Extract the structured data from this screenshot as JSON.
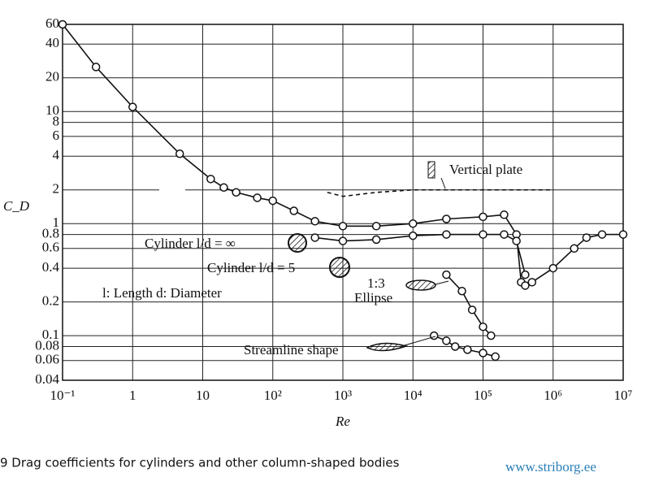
{
  "chart_data": {
    "type": "line",
    "xlabel": "Re",
    "ylabel": "C_D",
    "xlog": true,
    "ylog": true,
    "grid": true,
    "xlim": [
      0.1,
      10000000
    ],
    "ylim": [
      0.04,
      60
    ],
    "xticks": [
      {
        "value": 0.1,
        "label": "10⁻¹"
      },
      1,
      10,
      {
        "value": 100,
        "label": "10²"
      },
      {
        "value": 1000,
        "label": "10³"
      },
      {
        "value": 10000,
        "label": "10⁴"
      },
      {
        "value": 100000,
        "label": "10⁵"
      },
      {
        "value": 1000000,
        "label": "10⁶"
      },
      {
        "value": 10000000,
        "label": "10⁷"
      }
    ],
    "yticks": [
      60,
      40,
      20,
      10,
      8,
      6,
      4,
      2,
      1,
      0.8,
      0.6,
      0.4,
      0.2,
      0.1,
      0.08,
      0.06,
      0.04
    ],
    "series": [
      {
        "name": "Cylinder l/d = ∞",
        "color": "#111111",
        "line_style": "solid",
        "markers": true,
        "x": [
          0.1,
          0.3,
          1,
          4.7,
          13,
          20,
          30,
          60,
          100,
          200,
          400,
          1000,
          3000,
          10000,
          30000,
          100000,
          200000,
          300000,
          350000,
          400000,
          500000,
          1000000,
          2000000,
          3000000,
          5000000,
          10000000
        ],
        "values": [
          60,
          25,
          11,
          4.2,
          2.5,
          2.1,
          1.9,
          1.7,
          1.6,
          1.3,
          1.05,
          0.95,
          0.95,
          1.0,
          1.1,
          1.15,
          1.2,
          0.8,
          0.3,
          0.28,
          0.3,
          0.4,
          0.6,
          0.75,
          0.8,
          0.8
        ]
      },
      {
        "name": "Cylinder l/d = 5",
        "color": "#111111",
        "line_style": "solid",
        "markers": true,
        "x": [
          400,
          1000,
          3000,
          10000,
          30000,
          100000,
          200000,
          300000,
          400000
        ],
        "values": [
          0.75,
          0.7,
          0.72,
          0.78,
          0.8,
          0.8,
          0.8,
          0.7,
          0.35
        ]
      },
      {
        "name": "Vertical plate",
        "color": "#111111",
        "line_style": "dashed",
        "markers": false,
        "x": [
          600,
          1000,
          3000,
          10000,
          100000,
          1000000
        ],
        "values": [
          1.9,
          1.75,
          1.9,
          2.0,
          2.0,
          2.0
        ]
      },
      {
        "name": "Ellipse",
        "color": "#111111",
        "line_style": "solid",
        "markers": true,
        "x": [
          30000,
          50000,
          70000,
          100000,
          130000
        ],
        "values": [
          0.35,
          0.25,
          0.17,
          0.12,
          0.1
        ]
      },
      {
        "name": "Streamline shape",
        "color": "#111111",
        "line_style": "solid",
        "markers": true,
        "x": [
          20000,
          30000,
          40000,
          60000,
          100000,
          150000
        ],
        "values": [
          0.1,
          0.09,
          0.08,
          0.075,
          0.07,
          0.065
        ]
      }
    ],
    "annotations": [
      "l: Length  d: Diameter",
      "1:3"
    ],
    "caption": "9 Drag coefficients for cylinders and other column-shaped bodies",
    "watermark": "www.striborg.ee"
  }
}
